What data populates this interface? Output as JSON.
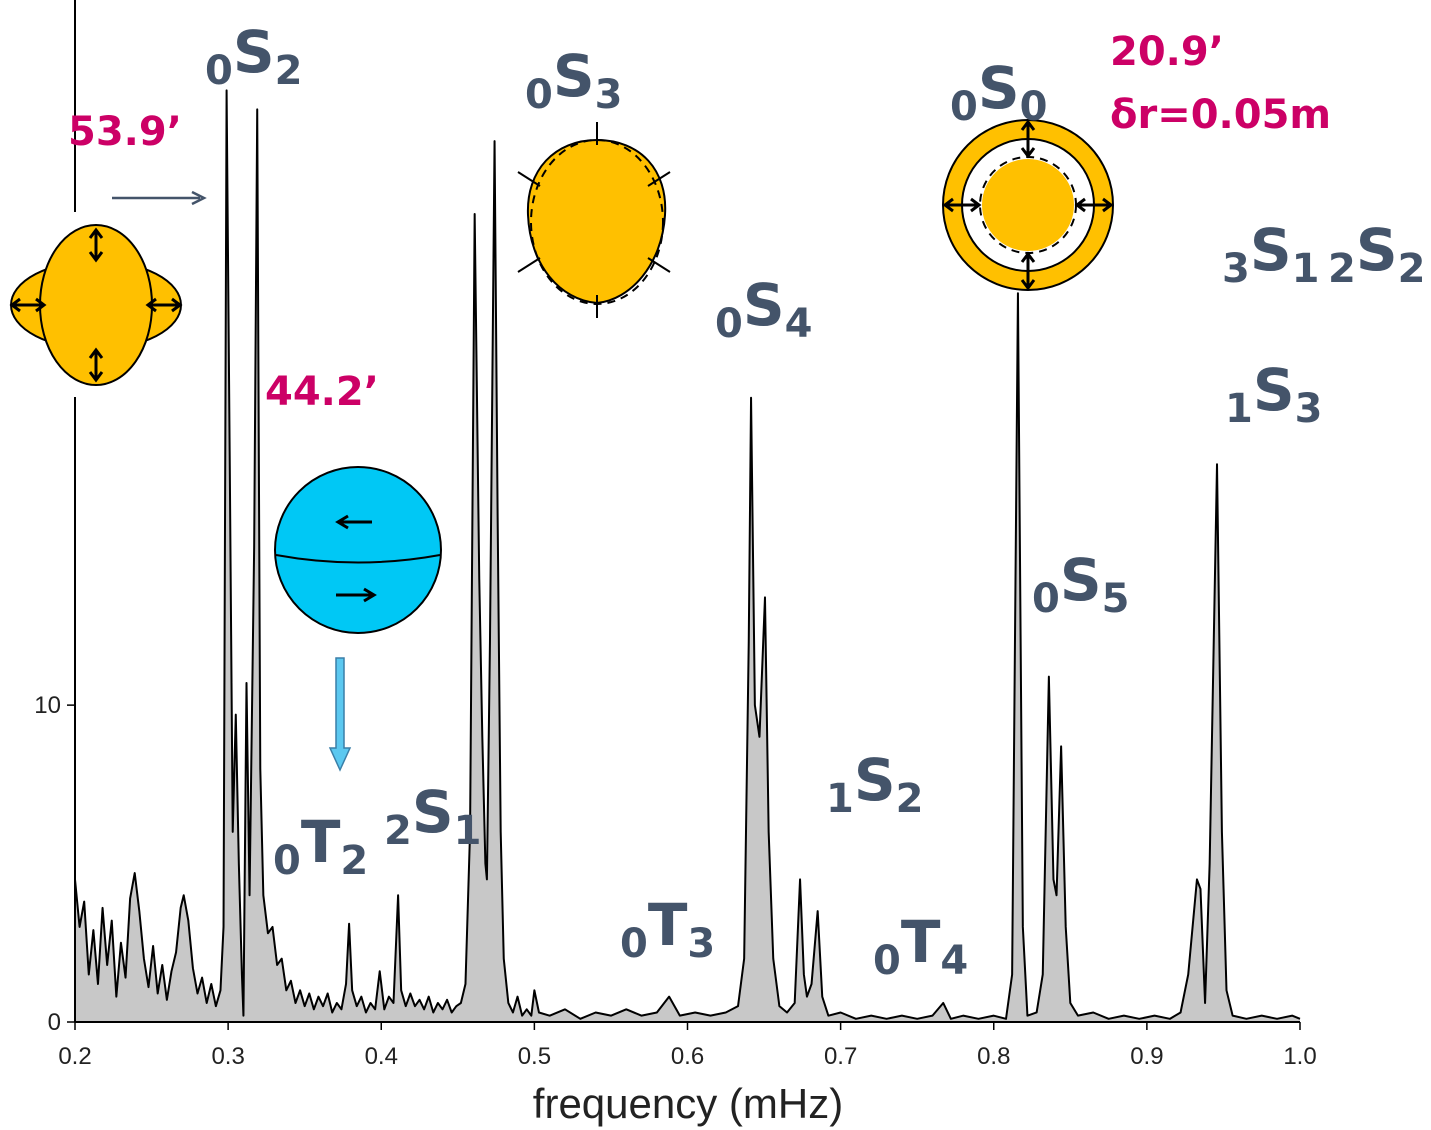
{
  "chart_data": {
    "type": "area",
    "x_label": "frequency (mHz)",
    "color": "#c8c8c8",
    "line_color": "#000000",
    "xlim": [
      0.2,
      1.0
    ],
    "ylim": [
      0,
      32
    ],
    "xticks": [
      0.2,
      0.3,
      0.4,
      0.5,
      0.6,
      0.7,
      0.8,
      0.9,
      {
        "value": 1,
        "label": "1.0"
      }
    ],
    "yticks": [
      0,
      10
    ],
    "x": [
      0.2,
      0.203,
      0.206,
      0.209,
      0.212,
      0.215,
      0.218,
      0.221,
      0.224,
      0.227,
      0.23,
      0.233,
      0.236,
      0.239,
      0.242,
      0.245,
      0.248,
      0.251,
      0.254,
      0.257,
      0.26,
      0.263,
      0.266,
      0.269,
      0.271,
      0.274,
      0.277,
      0.28,
      0.283,
      0.286,
      0.289,
      0.292,
      0.295,
      0.297,
      0.299,
      0.301,
      0.303,
      0.305,
      0.307,
      0.309,
      0.31,
      0.312,
      0.314,
      0.317,
      0.319,
      0.321,
      0.323,
      0.326,
      0.329,
      0.332,
      0.335,
      0.338,
      0.341,
      0.344,
      0.347,
      0.35,
      0.353,
      0.356,
      0.359,
      0.362,
      0.365,
      0.368,
      0.371,
      0.374,
      0.377,
      0.379,
      0.381,
      0.384,
      0.387,
      0.39,
      0.393,
      0.396,
      0.399,
      0.402,
      0.405,
      0.408,
      0.411,
      0.413,
      0.416,
      0.419,
      0.422,
      0.425,
      0.428,
      0.431,
      0.434,
      0.437,
      0.44,
      0.443,
      0.446,
      0.449,
      0.452,
      0.455,
      0.458,
      0.461,
      0.464,
      0.466,
      0.468,
      0.469,
      0.471,
      0.474,
      0.476,
      0.478,
      0.48,
      0.483,
      0.486,
      0.489,
      0.492,
      0.495,
      0.498,
      0.5,
      0.503,
      0.51,
      0.52,
      0.53,
      0.54,
      0.55,
      0.56,
      0.57,
      0.58,
      0.588,
      0.595,
      0.605,
      0.615,
      0.625,
      0.633,
      0.637,
      0.64,
      0.6415,
      0.644,
      0.647,
      0.6506,
      0.653,
      0.656,
      0.66,
      0.665,
      0.67,
      0.6735,
      0.676,
      0.678,
      0.681,
      0.685,
      0.688,
      0.692,
      0.7,
      0.71,
      0.72,
      0.73,
      0.74,
      0.75,
      0.76,
      0.767,
      0.772,
      0.78,
      0.79,
      0.8,
      0.808,
      0.812,
      0.8158,
      0.819,
      0.822,
      0.828,
      0.832,
      0.836,
      0.839,
      0.841,
      0.844,
      0.847,
      0.85,
      0.855,
      0.865,
      0.875,
      0.885,
      0.895,
      0.905,
      0.915,
      0.922,
      0.927,
      0.9327,
      0.935,
      0.938,
      0.941,
      0.9458,
      0.949,
      0.952,
      0.956,
      0.965,
      0.975,
      0.985,
      0.995,
      1.0
    ],
    "values": [
      4.5,
      3.0,
      3.8,
      1.5,
      2.9,
      1.2,
      3.6,
      1.8,
      3.2,
      0.8,
      2.5,
      1.4,
      3.9,
      4.7,
      3.5,
      2.0,
      1.1,
      2.4,
      0.9,
      1.8,
      0.7,
      1.6,
      2.2,
      3.6,
      4.0,
      3.2,
      1.7,
      0.9,
      1.4,
      0.6,
      1.2,
      0.5,
      1.0,
      3.0,
      29.4,
      18,
      6,
      9.7,
      5,
      1.5,
      0.2,
      10.7,
      4,
      15,
      28.8,
      8,
      4.0,
      2.8,
      3.0,
      1.8,
      2.0,
      1.0,
      1.3,
      0.6,
      1.0,
      0.5,
      0.9,
      0.4,
      0.8,
      0.5,
      0.9,
      0.3,
      0.6,
      0.4,
      1.2,
      3.1,
      1.0,
      0.5,
      0.8,
      0.3,
      0.6,
      0.4,
      1.6,
      0.4,
      0.8,
      0.6,
      4.0,
      1.0,
      0.5,
      0.9,
      0.5,
      0.7,
      0.4,
      0.8,
      0.3,
      0.6,
      0.4,
      0.7,
      0.3,
      0.5,
      0.6,
      1.2,
      6,
      25.5,
      14,
      9.0,
      5,
      4.5,
      12,
      27.8,
      16,
      6,
      2,
      0.6,
      0.3,
      0.8,
      0.2,
      0.4,
      0.2,
      1.0,
      0.3,
      0.2,
      0.4,
      0.1,
      0.3,
      0.2,
      0.4,
      0.2,
      0.3,
      0.8,
      0.2,
      0.3,
      0.2,
      0.3,
      0.5,
      2.0,
      12,
      19.7,
      10,
      9,
      13.4,
      6,
      2,
      0.5,
      0.3,
      0.6,
      4.5,
      1.5,
      0.8,
      1.2,
      3.5,
      0.8,
      0.2,
      0.3,
      0.1,
      0.2,
      0.1,
      0.2,
      0.1,
      0.2,
      0.6,
      0.1,
      0.2,
      0.1,
      0.2,
      0.1,
      1.5,
      23.0,
      3.0,
      0.2,
      0.3,
      1.5,
      10.9,
      4.5,
      4.0,
      8.7,
      3.0,
      0.6,
      0.2,
      0.3,
      0.1,
      0.2,
      0.1,
      0.2,
      0.1,
      0.3,
      1.5,
      4.5,
      4.2,
      0.6,
      5,
      17.6,
      6,
      1.0,
      0.2,
      0.1,
      0.2,
      0.1,
      0.2,
      0.1
    ],
    "mode_labels": [
      {
        "pre": "0",
        "main": "S",
        "sub": "2"
      },
      {
        "pre": "0",
        "main": "S",
        "sub": "3"
      },
      {
        "pre": "0",
        "main": "S",
        "sub": "0"
      },
      {
        "pre": "3",
        "main": "S",
        "sub": "1"
      },
      {
        "pre": "2",
        "main": "S",
        "sub": "2"
      },
      {
        "pre": "0",
        "main": "S",
        "sub": "4"
      },
      {
        "pre": "1",
        "main": "S",
        "sub": "3"
      },
      {
        "pre": "0",
        "main": "S",
        "sub": "5"
      },
      {
        "pre": "1",
        "main": "S",
        "sub": "2"
      },
      {
        "pre": "0",
        "main": "T",
        "sub": "2"
      },
      {
        "pre": "2",
        "main": "S",
        "sub": "1"
      },
      {
        "pre": "0",
        "main": "T",
        "sub": "3"
      },
      {
        "pre": "0",
        "main": "T",
        "sub": "4"
      }
    ],
    "annotations": [
      "53.9’",
      "44.2’",
      "20.9’",
      "δr=0.05m"
    ]
  }
}
